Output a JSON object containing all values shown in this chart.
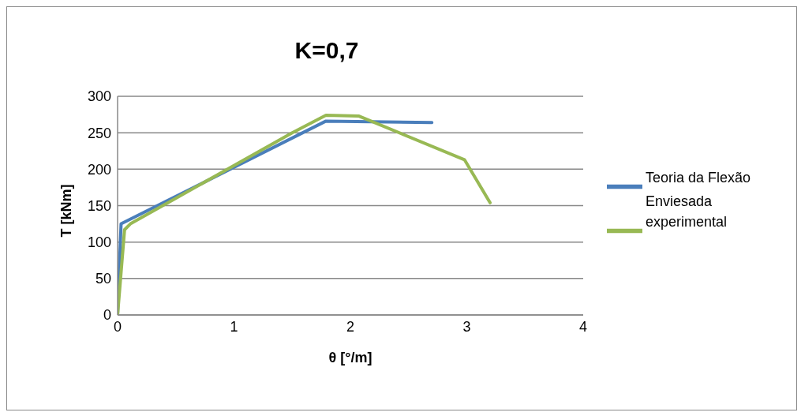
{
  "chart_data": {
    "type": "line",
    "title": "K=0,7",
    "xlabel": "θ [°/m]",
    "ylabel": "T [kNm]",
    "xlim": [
      0,
      4
    ],
    "xticks": [
      0,
      1,
      2,
      3,
      4
    ],
    "ylim": [
      0,
      300
    ],
    "yticks": [
      0,
      50,
      100,
      150,
      200,
      250,
      300
    ],
    "grid": "y",
    "legend": "right",
    "marker": "none",
    "line_style": "solid",
    "series": [
      {
        "name": "Teoria da Flexão Enviesada",
        "color": "#4a7ebb",
        "x": [
          0,
          0.03,
          1.79,
          2.7
        ],
        "values": [
          0,
          125,
          266,
          264
        ]
      },
      {
        "name": "experimental",
        "color": "#98b954",
        "x": [
          0,
          0.06,
          0.11,
          1.5,
          1.79,
          2.07,
          2.98,
          3.2
        ],
        "values": [
          0,
          117,
          125,
          250,
          274,
          273,
          213,
          154
        ]
      }
    ]
  }
}
